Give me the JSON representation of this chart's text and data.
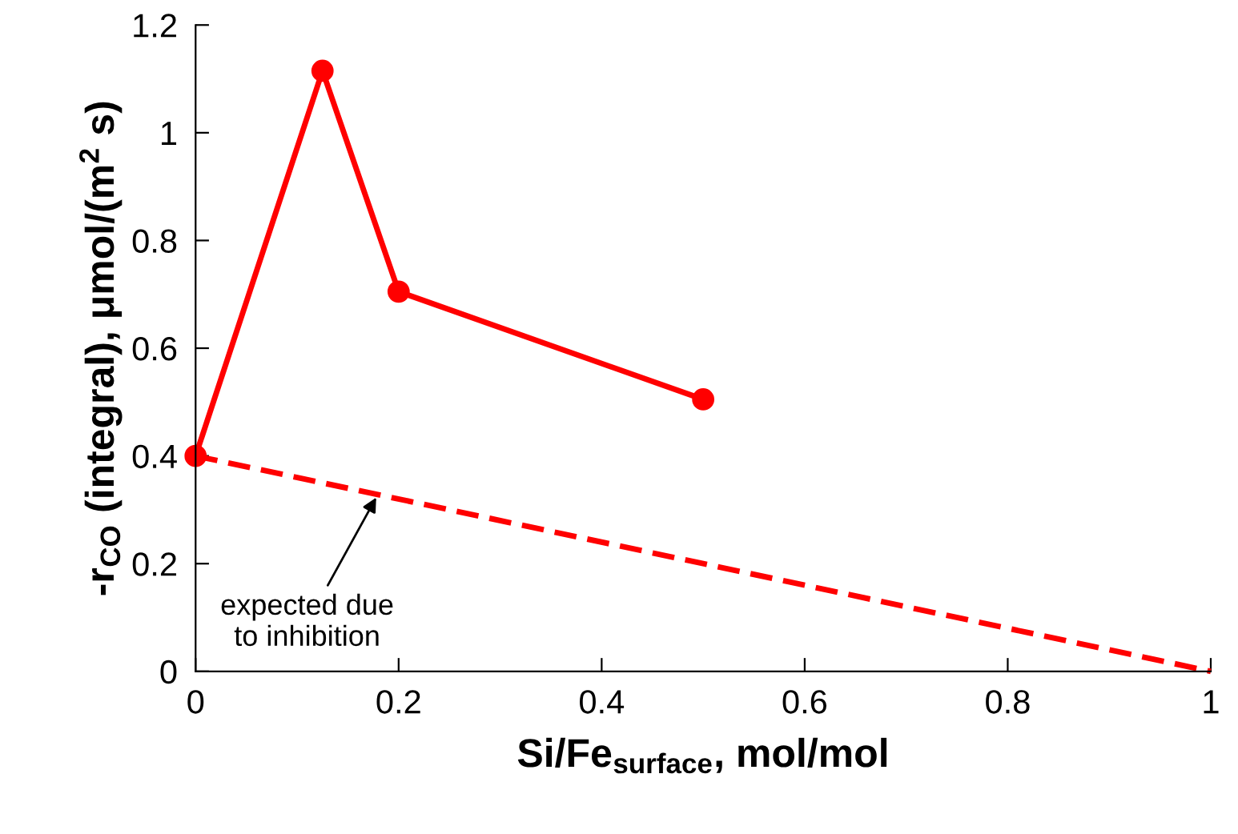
{
  "chart_data": {
    "type": "line",
    "xlabel": "Si/Fe$_{surface}$, mol/mol",
    "ylabel": "-r$_{CO}$ (integral), μmol/(m$^{2}$ s)",
    "series": [
      {
        "color": "#ff0000",
        "x": [
          0,
          0.125,
          0.2,
          0.5
        ],
        "values": [
          0.4,
          1.115,
          0.705,
          0.505
        ],
        "marker": "circle",
        "line_style": "solid"
      },
      {
        "color": "#ff0000",
        "x": [
          0,
          1
        ],
        "values": [
          0.4,
          0
        ],
        "marker": "none",
        "line_style": "dashed"
      }
    ],
    "annotations": [
      {
        "text": "expected due\nto inhibition",
        "x": 0.18,
        "y": 0.33
      }
    ],
    "xlim": [
      0,
      1
    ],
    "ylim": [
      0,
      1.2
    ],
    "xticks": [
      0,
      0.2,
      0.4,
      0.6,
      0.8,
      1
    ],
    "yticks": [
      0,
      0.2,
      0.4,
      0.6,
      0.8,
      1,
      1.2
    ],
    "grid": false,
    "legend": false
  }
}
